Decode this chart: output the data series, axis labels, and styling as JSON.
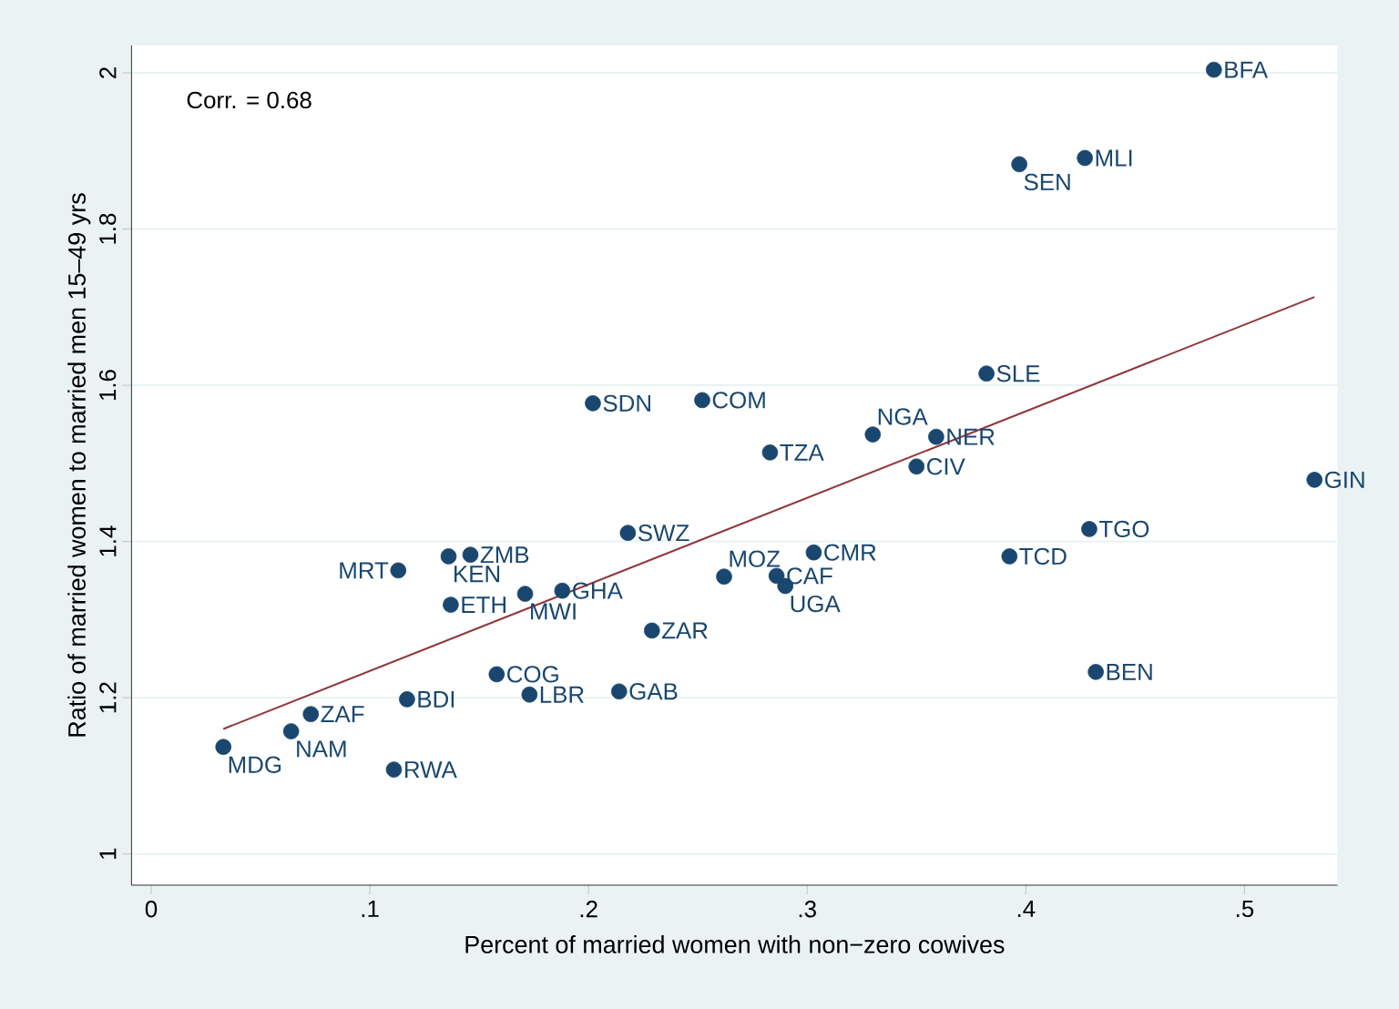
{
  "chart_data": {
    "type": "scatter",
    "xlabel": "Percent of married women with non−zero cowives",
    "ylabel": "Ratio of married women to married men 15–49 yrs",
    "xlim": [
      -0.009,
      0.5425
    ],
    "ylim": [
      0.96,
      2.035
    ],
    "xticks": [
      0,
      {
        "value": 0.1,
        "label": ".1"
      },
      {
        "value": 0.2,
        "label": ".2"
      },
      {
        "value": 0.3,
        "label": ".3"
      },
      {
        "value": 0.4,
        "label": ".4"
      },
      {
        "value": 0.5,
        "label": ".5"
      }
    ],
    "yticks": [
      1,
      1.2,
      1.4,
      1.6,
      1.8,
      2
    ],
    "grid": "y",
    "series": [
      {
        "marker": "circle",
        "color": "#1a476f",
        "x": [
          0.486,
          0.427,
          0.397,
          0.382,
          0.33,
          0.359,
          0.35,
          0.532,
          0.429,
          0.3925,
          0.432,
          0.113,
          0.136,
          0.146,
          0.137,
          0.171,
          0.188,
          0.158,
          0.173,
          0.117,
          0.073,
          0.064,
          0.033,
          0.111,
          0.202,
          0.252,
          0.283,
          0.218,
          0.303,
          0.262,
          0.286,
          0.29,
          0.229,
          0.214
        ],
        "values": [
          2.004,
          1.891,
          1.883,
          1.615,
          1.537,
          1.534,
          1.496,
          1.479,
          1.416,
          1.381,
          1.233,
          1.363,
          1.381,
          1.383,
          1.319,
          1.333,
          1.337,
          1.23,
          1.204,
          1.198,
          1.179,
          1.157,
          1.137,
          1.108,
          1.577,
          1.581,
          1.514,
          1.411,
          1.386,
          1.355,
          1.356,
          1.343,
          1.286,
          1.208
        ]
      },
      {
        "type": "line",
        "marker": "none",
        "color": "#90353b",
        "x": [
          0.033,
          0.532
        ],
        "values": [
          1.16,
          1.713
        ]
      }
    ],
    "annotations": [
      "Corr. = 0.68",
      {
        "text": "BFA",
        "x": 0.486,
        "y": 2.004
      },
      {
        "text": "MLI",
        "x": 0.427,
        "y": 1.891
      },
      {
        "text": "SEN",
        "x": 0.397,
        "y": 1.883
      },
      {
        "text": "SLE",
        "x": 0.382,
        "y": 1.615
      },
      {
        "text": "NGA",
        "x": 0.33,
        "y": 1.537
      },
      {
        "text": "NER",
        "x": 0.359,
        "y": 1.534
      },
      {
        "text": "CIV",
        "x": 0.35,
        "y": 1.496
      },
      {
        "text": "GIN",
        "x": 0.532,
        "y": 1.479
      },
      {
        "text": "TGO",
        "x": 0.429,
        "y": 1.416
      },
      {
        "text": "TCD",
        "x": 0.3925,
        "y": 1.381
      },
      {
        "text": "BEN",
        "x": 0.432,
        "y": 1.233
      },
      {
        "text": "MRT",
        "x": 0.113,
        "y": 1.363
      },
      {
        "text": "KEN",
        "x": 0.136,
        "y": 1.381
      },
      {
        "text": "ZMB",
        "x": 0.146,
        "y": 1.383
      },
      {
        "text": "ETH",
        "x": 0.137,
        "y": 1.319
      },
      {
        "text": "MWI",
        "x": 0.171,
        "y": 1.333
      },
      {
        "text": "GHA",
        "x": 0.188,
        "y": 1.337
      },
      {
        "text": "COG",
        "x": 0.158,
        "y": 1.23
      },
      {
        "text": "LBR",
        "x": 0.173,
        "y": 1.204
      },
      {
        "text": "BDI",
        "x": 0.117,
        "y": 1.198
      },
      {
        "text": "ZAF",
        "x": 0.073,
        "y": 1.179
      },
      {
        "text": "NAM",
        "x": 0.064,
        "y": 1.157
      },
      {
        "text": "MDG",
        "x": 0.033,
        "y": 1.137
      },
      {
        "text": "RWA",
        "x": 0.111,
        "y": 1.108
      },
      {
        "text": "SDN",
        "x": 0.202,
        "y": 1.577
      },
      {
        "text": "COM",
        "x": 0.252,
        "y": 1.581
      },
      {
        "text": "TZA",
        "x": 0.283,
        "y": 1.514
      },
      {
        "text": "SWZ",
        "x": 0.218,
        "y": 1.411
      },
      {
        "text": "CMR",
        "x": 0.303,
        "y": 1.386
      },
      {
        "text": "MOZ",
        "x": 0.262,
        "y": 1.355
      },
      {
        "text": "CAF",
        "x": 0.286,
        "y": 1.356
      },
      {
        "text": "UGA",
        "x": 0.29,
        "y": 1.343
      },
      {
        "text": "ZAR",
        "x": 0.229,
        "y": 1.286
      },
      {
        "text": "GAB",
        "x": 0.214,
        "y": 1.208
      }
    ]
  }
}
